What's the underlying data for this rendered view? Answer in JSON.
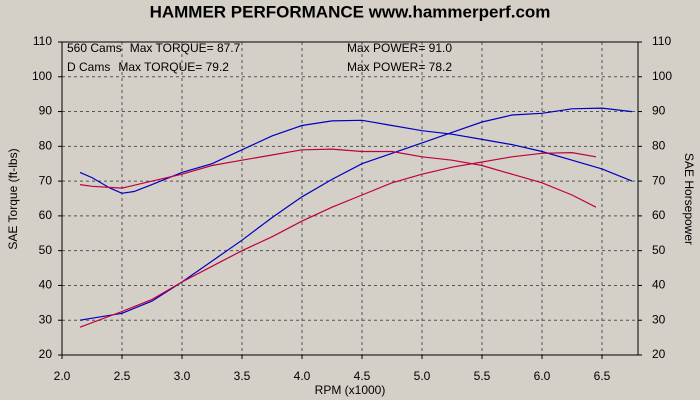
{
  "chart_data": {
    "type": "line",
    "title": "HAMMER PERFORMANCE www.hammerperf.com",
    "x_label": "RPM (x1000)",
    "y_label": "SAE Torque (ft-lbs)",
    "y2_label": "SAE Horsepower",
    "xlim": [
      2.0,
      6.8
    ],
    "xticks": [
      {
        "value": 2.0,
        "label": "2.0"
      },
      2.5,
      {
        "value": 3.0,
        "label": "3.0"
      },
      3.5,
      {
        "value": 4.0,
        "label": "4.0"
      },
      4.5,
      {
        "value": 5.0,
        "label": "5.0"
      },
      5.5,
      {
        "value": 6.0,
        "label": "6.0"
      },
      6.5
    ],
    "ylim": [
      20,
      110
    ],
    "yticks": [
      20,
      30,
      40,
      50,
      60,
      70,
      80,
      90,
      100,
      110
    ],
    "y2lim": [
      20,
      110
    ],
    "y2ticks": [
      20,
      30,
      40,
      50,
      60,
      70,
      80,
      90,
      100,
      110
    ],
    "grid": true,
    "legend": [
      {
        "name": "560 Cams",
        "color": "#0000c0",
        "max_torque": "Max TORQUE= 87.7",
        "max_power": "Max POWER= 91.0"
      },
      {
        "name": "D Cams",
        "color": "#c00040",
        "max_torque": "Max TORQUE= 79.2",
        "max_power": "Max POWER= 78.2"
      }
    ],
    "series": [
      {
        "color": "#0000c0",
        "x": [
          2.15,
          2.25,
          2.4,
          2.5,
          2.6,
          2.75,
          3.0,
          3.25,
          3.5,
          3.75,
          4.0,
          4.25,
          4.5,
          4.75,
          5.0,
          5.25,
          5.5,
          5.75,
          6.0,
          6.25,
          6.5,
          6.75
        ],
        "values": [
          72.5,
          71,
          68,
          66.5,
          67,
          69,
          72.5,
          75,
          79,
          83,
          86,
          87.3,
          87.5,
          86,
          84.5,
          83.5,
          82,
          80.5,
          78.5,
          76,
          73.5,
          70
        ]
      },
      {
        "color": "#0000c0",
        "axis": "y2",
        "x": [
          2.15,
          2.5,
          2.75,
          3.0,
          3.25,
          3.5,
          3.75,
          4.0,
          4.25,
          4.5,
          4.75,
          5.0,
          5.25,
          5.5,
          5.75,
          6.0,
          6.25,
          6.5,
          6.75
        ],
        "values": [
          30,
          32,
          35.5,
          41,
          47,
          53,
          59.5,
          65.5,
          70.5,
          75,
          78,
          81,
          84,
          87,
          89,
          89.5,
          90.8,
          91,
          90
        ]
      },
      {
        "color": "#c00040",
        "x": [
          2.15,
          2.25,
          2.5,
          2.75,
          3.0,
          3.25,
          3.5,
          3.75,
          4.0,
          4.25,
          4.5,
          4.75,
          5.0,
          5.25,
          5.5,
          5.75,
          6.0,
          6.25,
          6.45
        ],
        "values": [
          69,
          68.5,
          68,
          70,
          72,
          74.5,
          76,
          77.5,
          79,
          79.2,
          78.5,
          78.5,
          77,
          76,
          74.5,
          72,
          69.5,
          66,
          62.5
        ]
      },
      {
        "color": "#c00040",
        "axis": "y2",
        "x": [
          2.15,
          2.5,
          2.75,
          3.0,
          3.25,
          3.5,
          3.75,
          4.0,
          4.25,
          4.5,
          4.75,
          5.0,
          5.25,
          5.5,
          5.75,
          6.0,
          6.25,
          6.45
        ],
        "values": [
          28,
          32.5,
          36,
          41,
          45.5,
          50,
          54,
          58.5,
          62.5,
          66,
          69.5,
          72,
          74,
          75.5,
          77,
          78,
          78.2,
          77
        ]
      }
    ]
  }
}
